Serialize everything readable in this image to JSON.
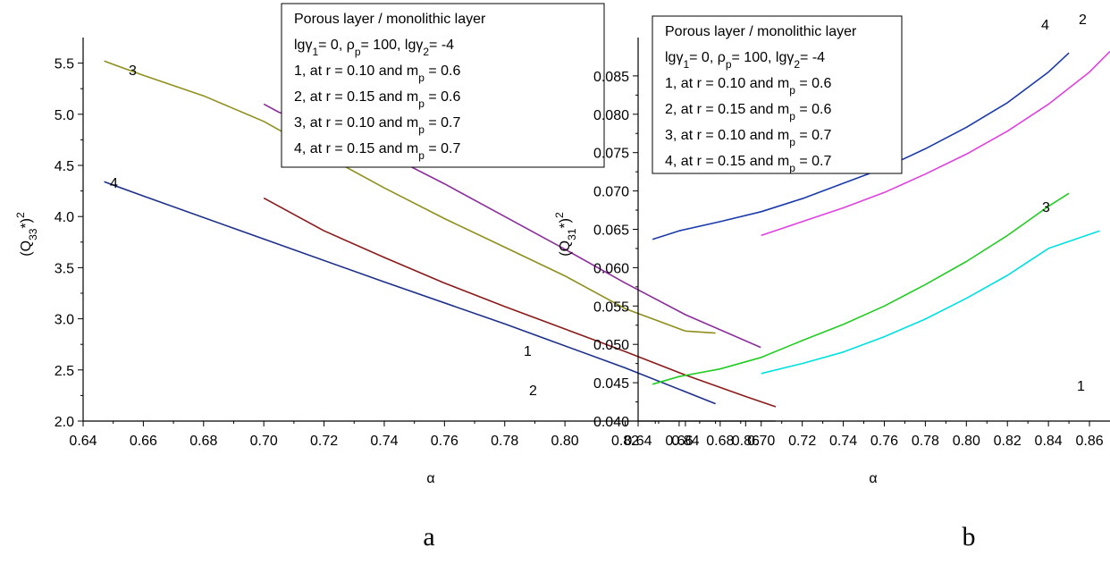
{
  "chart_data": [
    {
      "panel_label": "a",
      "type": "line",
      "xlabel": "α",
      "ylabel": "(Q33*)2",
      "xlim": [
        0.64,
        0.87
      ],
      "ylim": [
        2.0,
        5.75
      ],
      "x_ticks": [
        "0.64",
        "0.66",
        "0.68",
        "0.70",
        "0.72",
        "0.74",
        "0.76",
        "0.78",
        "0.80",
        "0.82",
        "0.84",
        "0.86"
      ],
      "y_ticks": [
        "2.0",
        "2.5",
        "3.0",
        "3.5",
        "4.0",
        "4.5",
        "5.0",
        "5.5"
      ],
      "legend": {
        "title": "Porous layer / monolithic layer",
        "params": "lgγ1= 0, ρp= 100, lgγ2= -4",
        "entries": [
          "1, at r = 0.10 and mp = 0.6",
          "2, at r = 0.15 and mp = 0.6",
          "3, at r = 0.10 and mp = 0.7",
          "4, at r = 0.15 and mp = 0.7"
        ],
        "placement": "top-right"
      },
      "series": [
        {
          "name": "1",
          "color": "#8b2d9a",
          "x": [
            0.7,
            0.705,
            0.72,
            0.74,
            0.76,
            0.78,
            0.8,
            0.82,
            0.84,
            0.865
          ],
          "y": [
            5.1,
            5.02,
            4.85,
            4.62,
            4.32,
            4.0,
            3.68,
            3.35,
            3.04,
            2.72
          ]
        },
        {
          "name": "2",
          "color": "#8b1a1a",
          "x": [
            0.7,
            0.72,
            0.74,
            0.76,
            0.78,
            0.8,
            0.82,
            0.84,
            0.86,
            0.87
          ],
          "y": [
            4.18,
            3.86,
            3.6,
            3.35,
            3.12,
            2.9,
            2.68,
            2.45,
            2.24,
            2.14
          ]
        },
        {
          "name": "3",
          "color": "#8f8f1e",
          "x": [
            0.647,
            0.66,
            0.68,
            0.7,
            0.72,
            0.74,
            0.76,
            0.78,
            0.8,
            0.82,
            0.84,
            0.85
          ],
          "y": [
            5.52,
            5.38,
            5.18,
            4.93,
            4.6,
            4.28,
            3.98,
            3.7,
            3.42,
            3.1,
            2.88,
            2.86
          ]
        },
        {
          "name": "4",
          "color": "#1c2f8a",
          "x": [
            0.647,
            0.66,
            0.7,
            0.74,
            0.78,
            0.82,
            0.85
          ],
          "y": [
            4.34,
            4.2,
            3.78,
            3.36,
            2.95,
            2.52,
            2.17
          ]
        }
      ]
    },
    {
      "panel_label": "b",
      "type": "line",
      "xlabel": "α",
      "ylabel": "(Q31*)2",
      "xlim": [
        0.64,
        0.87
      ],
      "ylim": [
        0.04,
        0.09
      ],
      "x_ticks": [
        "0.64",
        "0.66",
        "0.68",
        "0.70",
        "0.72",
        "0.74",
        "0.76",
        "0.78",
        "0.80",
        "0.82",
        "0.84",
        "0.86"
      ],
      "y_ticks": [
        "0.040",
        "0.045",
        "0.050",
        "0.055",
        "0.060",
        "0.065",
        "0.070",
        "0.075",
        "0.080",
        "0.085"
      ],
      "legend": {
        "title": "Porous layer / monolithic layer",
        "params": "lgγ1= 0, ρp= 100, lgγ2= -4",
        "entries": [
          "1, at r = 0.10 and mp = 0.6",
          "2, at r = 0.15 and mp = 0.6",
          "3, at r = 0.10 and mp = 0.7",
          "4, at r = 0.15 and mp = 0.7"
        ],
        "placement": "top-left"
      },
      "series": [
        {
          "name": "1",
          "color": "#00e0e0",
          "x": [
            0.7,
            0.72,
            0.74,
            0.76,
            0.78,
            0.8,
            0.82,
            0.84,
            0.865
          ],
          "y": [
            0.0462,
            0.0475,
            0.049,
            0.051,
            0.0533,
            0.056,
            0.059,
            0.0625,
            0.0648
          ]
        },
        {
          "name": "2",
          "color": "#e040e0",
          "x": [
            0.7,
            0.72,
            0.74,
            0.76,
            0.78,
            0.8,
            0.82,
            0.84,
            0.86,
            0.87
          ],
          "y": [
            0.0642,
            0.066,
            0.0678,
            0.0698,
            0.0722,
            0.0748,
            0.0778,
            0.0813,
            0.0855,
            0.0882
          ]
        },
        {
          "name": "3",
          "color": "#22cc22",
          "x": [
            0.647,
            0.66,
            0.68,
            0.7,
            0.72,
            0.74,
            0.76,
            0.78,
            0.8,
            0.82,
            0.84,
            0.85
          ],
          "y": [
            0.0448,
            0.0458,
            0.0468,
            0.0483,
            0.0505,
            0.0526,
            0.055,
            0.0578,
            0.0608,
            0.0642,
            0.068,
            0.0697
          ]
        },
        {
          "name": "4",
          "color": "#1a3aaa",
          "x": [
            0.647,
            0.66,
            0.68,
            0.7,
            0.72,
            0.74,
            0.76,
            0.78,
            0.8,
            0.82,
            0.84,
            0.85
          ],
          "y": [
            0.0637,
            0.0648,
            0.066,
            0.0673,
            0.069,
            0.071,
            0.073,
            0.0755,
            0.0783,
            0.0815,
            0.0855,
            0.088
          ]
        }
      ]
    }
  ]
}
